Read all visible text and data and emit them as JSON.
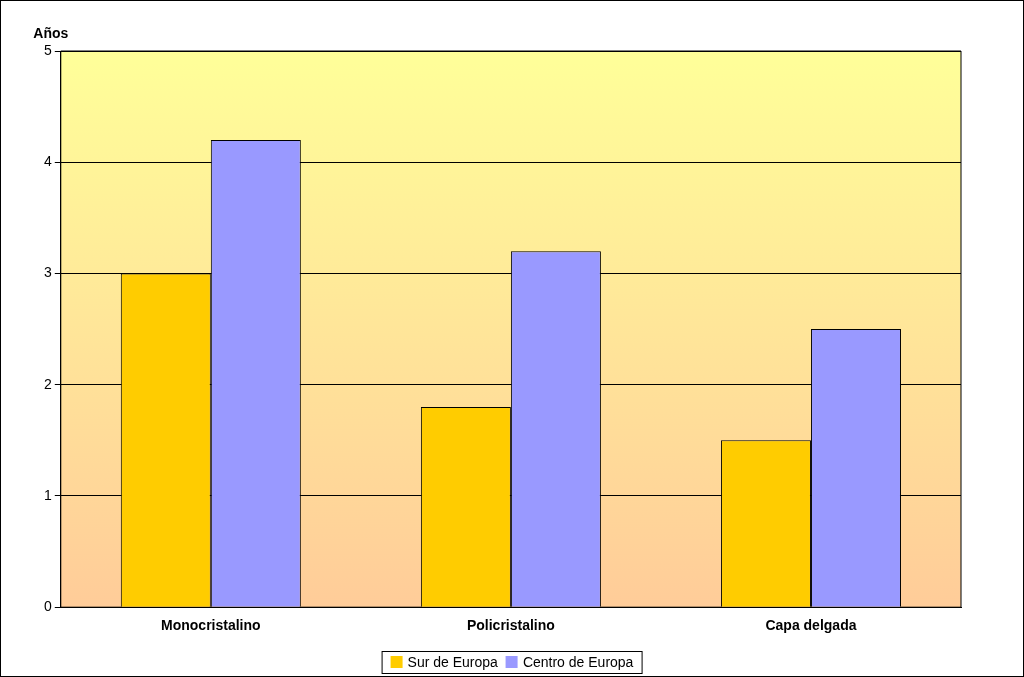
{
  "chart_data": {
    "type": "bar",
    "ylabel": "Años",
    "categories": [
      "Monocristalino",
      "Policristalino",
      "Capa delgada"
    ],
    "series": [
      {
        "name": "Sur de Europa",
        "color": "#ffcc00",
        "values": [
          3,
          1.8,
          1.5
        ]
      },
      {
        "name": "Centro de Europa",
        "color": "#9999ff",
        "values": [
          4.2,
          3.2,
          2.5
        ]
      }
    ],
    "ylim": [
      0,
      5
    ],
    "yticks": [
      0,
      1,
      2,
      3,
      4,
      5
    ],
    "grid": "y",
    "legend": "bottom"
  }
}
